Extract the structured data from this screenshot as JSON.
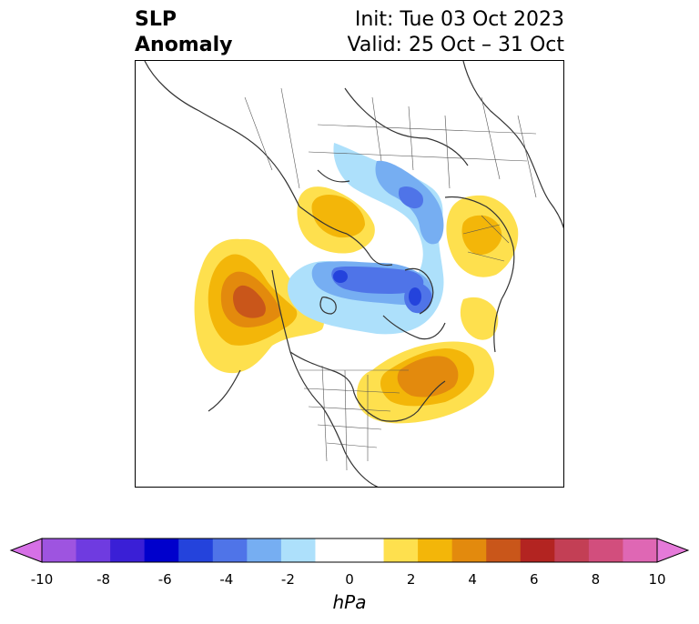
{
  "title": {
    "left_line1": "SLP",
    "left_line2": "Anomaly",
    "right_line1": "Init: Tue 03 Oct 2023",
    "right_line2": "Valid: 25 Oct – 31 Oct"
  },
  "colorbar": {
    "units": "hPa",
    "ticks": [
      "-10",
      "-8",
      "-6",
      "-4",
      "-2",
      "0",
      "2",
      "4",
      "6",
      "8",
      "10"
    ],
    "extend": "both",
    "colors": [
      "#d670e6",
      "#9e54e0",
      "#6f3be0",
      "#3a1fd6",
      "#0000cc",
      "#2443dc",
      "#4f74e8",
      "#76aef2",
      "#ade0fb",
      "#ffffff",
      "#ffffff",
      "#fee04e",
      "#f3b609",
      "#e38a0d",
      "#c9561a",
      "#b32421",
      "#c33f55",
      "#d24e7d",
      "#df67b4",
      "#e57ad9"
    ]
  },
  "map": {
    "projection": "north-polar-stereographic",
    "palette": {
      "yellow": "#fee04e",
      "gold": "#f3b609",
      "orange": "#e38a0d",
      "rust": "#c9561a",
      "lightblue": "#ade0fb",
      "skyblue": "#76aef2",
      "blue": "#4f74e8",
      "darkblue": "#2443dc",
      "coast": "#333333"
    }
  }
}
